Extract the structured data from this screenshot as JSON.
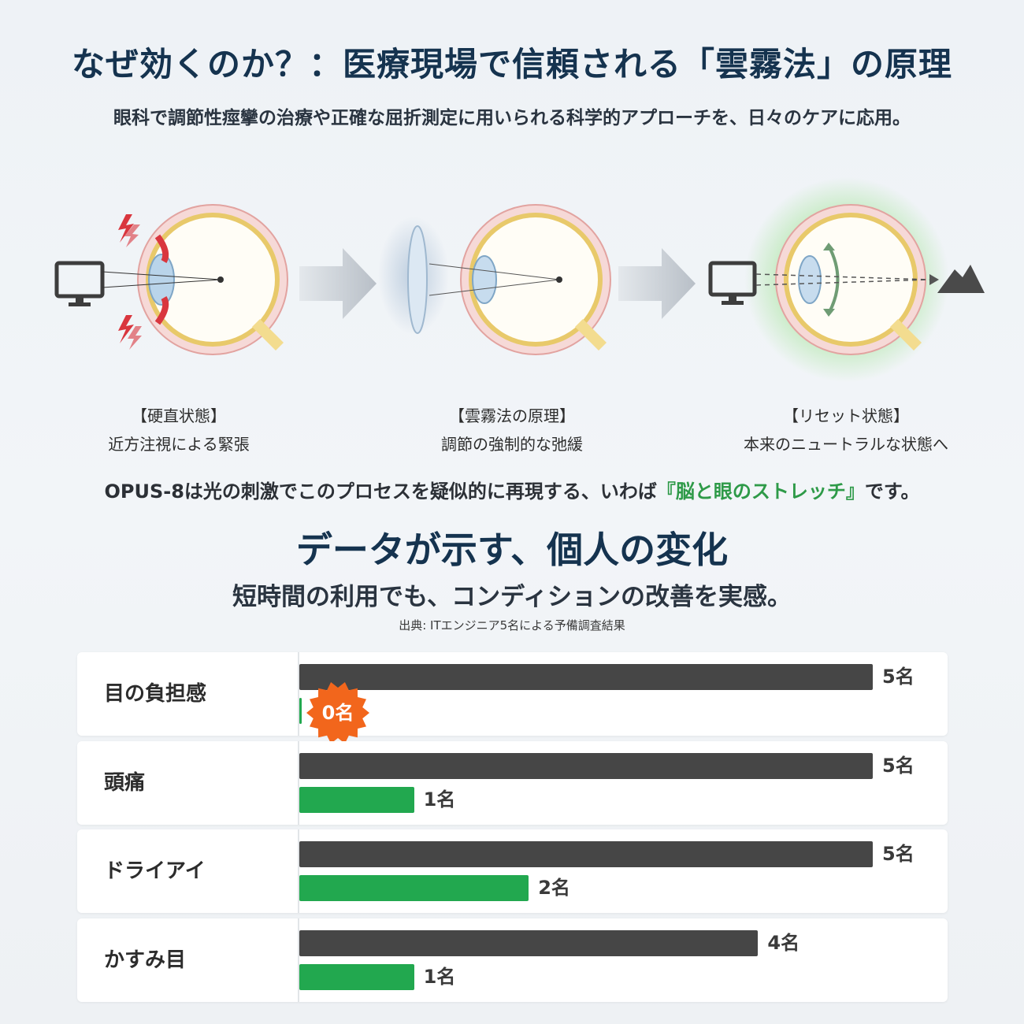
{
  "header": {
    "title": "なぜ効くのか？：医療現場で信頼される「雲霧法」の原理",
    "subtitle": "眼科で調節性痙攣の治療や正確な屈折測定に用いられる科学的アプローチを、日々のケアに応用。"
  },
  "stages": [
    {
      "label": "【硬直状態】",
      "desc": "近方注視による緊張"
    },
    {
      "label": "【雲霧法の原理】",
      "desc": "調節の強制的な弛緩"
    },
    {
      "label": "【リセット状態】",
      "desc": "本来のニュートラルな状態へ"
    }
  ],
  "opus": {
    "pre": "OPUS-8は光の刺激でこのプロセスを疑似的に再現する、いわば",
    "highlight": "『脳と眼のストレッチ』",
    "post": "です。"
  },
  "data_section": {
    "heading": "データが示す、個人の変化",
    "subheading": "短時間の利用でも、コンディションの改善を実感。",
    "source": "出典: ITエンジニア5名による予備調査結果"
  },
  "colors": {
    "title": "#15334f",
    "before_bar": "#464646",
    "after_bar": "#22a84f",
    "highlight": "#2e9a48",
    "burst": "#f2661c",
    "strain_red": "#d9363e"
  },
  "icons": [
    "monitor-icon",
    "eye-icon",
    "lightning-icon",
    "arrow-right-icon",
    "lens-icon",
    "mountain-icon"
  ],
  "chart_data": {
    "type": "bar",
    "orientation": "horizontal",
    "unit": "名",
    "xlim": [
      0,
      5
    ],
    "categories": [
      "目の負担感",
      "頭痛",
      "ドライアイ",
      "かすみ目"
    ],
    "series": [
      {
        "values": [
          5,
          5,
          5,
          4
        ]
      },
      {
        "values": [
          0,
          1,
          2,
          1
        ]
      }
    ],
    "labels": [
      [
        "5名",
        "5名",
        "5名",
        "4名"
      ],
      [
        "0名",
        "1名",
        "2名",
        "1名"
      ]
    ]
  }
}
